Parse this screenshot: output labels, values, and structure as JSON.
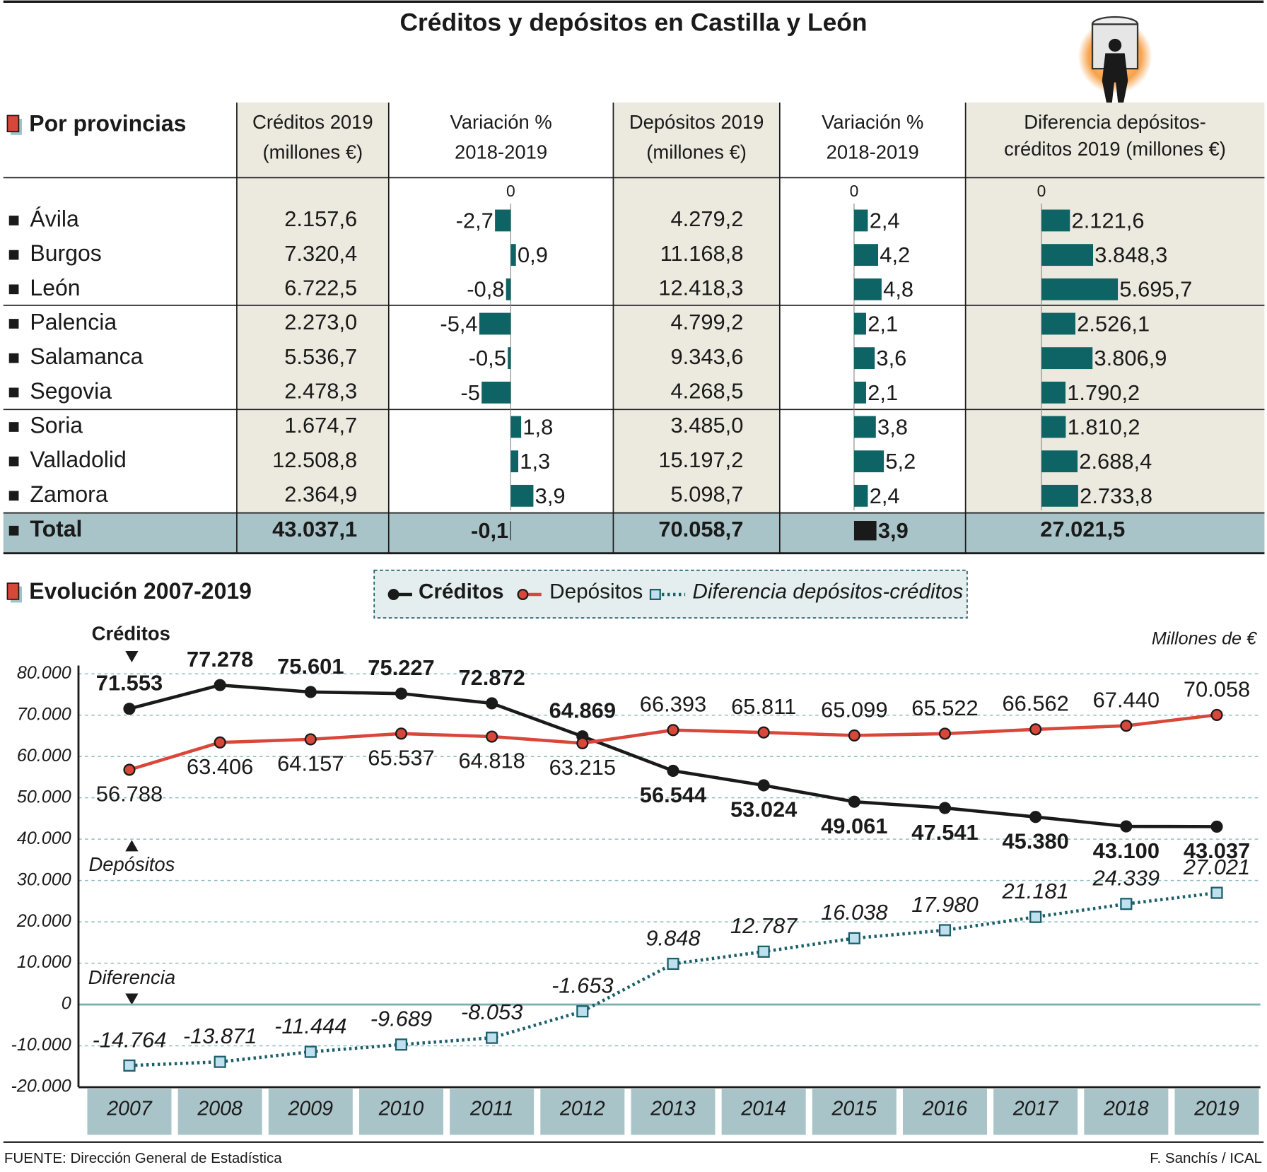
{
  "title": "Créditos y depósitos en Castilla y León",
  "table": {
    "section": "Por provincias",
    "columns": [
      {
        "header": [
          "Créditos 2019",
          "(millones €)"
        ]
      },
      {
        "header": [
          "Variación %",
          "2018-2019"
        ],
        "zero": 0
      },
      {
        "header": [
          "Depósitos 2019",
          "(millones €)"
        ]
      },
      {
        "header": [
          "Variación %",
          "2018-2019"
        ],
        "zero": 0
      },
      {
        "header": [
          "Diferencia depósitos-",
          "créditos 2019 (millones €)"
        ],
        "zero": 0
      }
    ],
    "rows": [
      {
        "name": "Ávila",
        "cells": [
          "2.157,6",
          {
            "value": -2.7,
            "label": "-2,7"
          },
          "4.279,2",
          {
            "value": 2.4,
            "label": "2,4"
          },
          {
            "value": 2121.6,
            "label": "2.121,6"
          }
        ]
      },
      {
        "name": "Burgos",
        "cells": [
          "7.320,4",
          {
            "value": 0.9,
            "label": "0,9"
          },
          "11.168,8",
          {
            "value": 4.2,
            "label": "4,2"
          },
          {
            "value": 3848.3,
            "label": "3.848,3"
          }
        ]
      },
      {
        "name": "León",
        "cells": [
          "6.722,5",
          {
            "value": -0.8,
            "label": "-0,8"
          },
          "12.418,3",
          {
            "value": 4.8,
            "label": "4,8"
          },
          {
            "value": 5695.7,
            "label": "5.695,7"
          }
        ]
      },
      {
        "name": "Palencia",
        "cells": [
          "2.273,0",
          {
            "value": -5.4,
            "label": "-5,4"
          },
          "4.799,2",
          {
            "value": 2.1,
            "label": "2,1"
          },
          {
            "value": 2526.1,
            "label": "2.526,1"
          }
        ]
      },
      {
        "name": "Salamanca",
        "cells": [
          "5.536,7",
          {
            "value": -0.5,
            "label": "-0,5"
          },
          "9.343,6",
          {
            "value": 3.6,
            "label": "3,6"
          },
          {
            "value": 3806.9,
            "label": "3.806,9"
          }
        ]
      },
      {
        "name": "Segovia",
        "cells": [
          "2.478,3",
          {
            "value": -5,
            "label": "-5"
          },
          "4.268,5",
          {
            "value": 2.1,
            "label": "2,1"
          },
          {
            "value": 1790.2,
            "label": "1.790,2"
          }
        ]
      },
      {
        "name": "Soria",
        "cells": [
          "1.674,7",
          {
            "value": 1.8,
            "label": "1,8"
          },
          "3.485,0",
          {
            "value": 3.8,
            "label": "3,8"
          },
          {
            "value": 1810.2,
            "label": "1.810,2"
          }
        ]
      },
      {
        "name": "Valladolid",
        "cells": [
          "12.508,8",
          {
            "value": 1.3,
            "label": "1,3"
          },
          "15.197,2",
          {
            "value": 5.2,
            "label": "5,2"
          },
          {
            "value": 2688.4,
            "label": "2.688,4"
          }
        ]
      },
      {
        "name": "Zamora",
        "cells": [
          "2.364,9",
          {
            "value": 3.9,
            "label": "3,9"
          },
          "5.098,7",
          {
            "value": 2.4,
            "label": "2,4"
          },
          {
            "value": 2733.8,
            "label": "2.733,8"
          }
        ]
      }
    ],
    "total": {
      "name": "Total",
      "cells": [
        "43.037,1",
        {
          "value": -0.1,
          "label": "-0,1"
        },
        "70.058,7",
        {
          "value": 3.9,
          "label": "3,9"
        },
        "27.021,5"
      ]
    }
  },
  "chart_data": {
    "type": "line",
    "section": "Evolución 2007-2019",
    "unit_label": "Millones de €",
    "annotations": [
      "Créditos",
      "Depósitos",
      "Diferencia"
    ],
    "categories": [
      "2007",
      "2008",
      "2009",
      "2010",
      "2011",
      "2012",
      "2013",
      "2014",
      "2015",
      "2016",
      "2017",
      "2018",
      "2019"
    ],
    "series": [
      {
        "name": "Créditos",
        "color": "#1a1a1a",
        "values": [
          71553,
          77278,
          75601,
          75227,
          72872,
          64869,
          56544,
          53024,
          49061,
          47541,
          45380,
          43100,
          43037
        ],
        "value_labels": [
          "71.553",
          "77.278",
          "75.601",
          "75.227",
          "72.872",
          "64.869",
          "56.544",
          "53.024",
          "49.061",
          "47.541",
          "45.380",
          "43.100",
          "43.037"
        ]
      },
      {
        "name": "Depósitos",
        "color": "#d9463a",
        "values": [
          56788,
          63406,
          64157,
          65537,
          64818,
          63215,
          66393,
          65811,
          65099,
          65522,
          66562,
          67440,
          70058
        ],
        "value_labels": [
          "56.788",
          "63.406",
          "64.157",
          "65.537",
          "64.818",
          "63.215",
          "66.393",
          "65.811",
          "65.099",
          "65.522",
          "66.562",
          "67.440",
          "70.058"
        ]
      },
      {
        "name": "Diferencia depósitos-créditos",
        "color": "#1c5f6a",
        "values": [
          -14764,
          -13871,
          -11444,
          -9689,
          -8053,
          -1653,
          9848,
          12787,
          16038,
          17980,
          21181,
          24339,
          27021
        ],
        "value_labels": [
          "-14.764",
          "-13.871",
          "-11.444",
          "-9.689",
          "-8.053",
          "-1.653",
          "9.848",
          "12.787",
          "16.038",
          "17.980",
          "21.181",
          "24.339",
          "27.021"
        ]
      }
    ],
    "ylim": [
      -20000,
      82000
    ],
    "yticks": [
      {
        "value": -20000,
        "label": "-20.000"
      },
      {
        "value": -10000,
        "label": "-10.000"
      },
      0,
      {
        "value": 10000,
        "label": "10.000"
      },
      {
        "value": 20000,
        "label": "20.000"
      },
      {
        "value": 30000,
        "label": "30.000"
      },
      {
        "value": 40000,
        "label": "40.000"
      },
      {
        "value": 50000,
        "label": "50.000"
      },
      {
        "value": 60000,
        "label": "60.000"
      },
      {
        "value": 70000,
        "label": "70.000"
      },
      {
        "value": 80000,
        "label": "80.000"
      }
    ],
    "grid": true
  },
  "source": "FUENTE: Dirección General de Estadística",
  "credit": "F. Sanchís / ICAL"
}
